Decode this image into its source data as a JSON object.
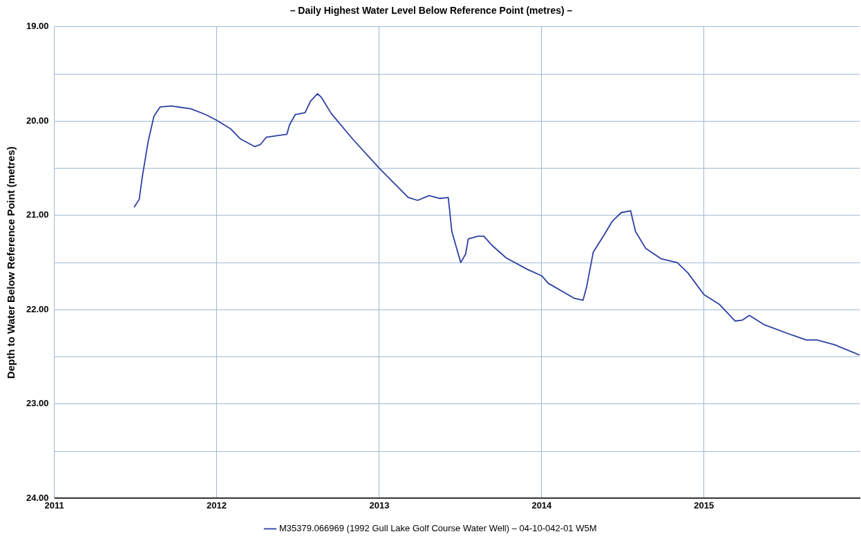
{
  "chart_data": {
    "type": "line",
    "title": "– Daily Highest Water Level Below Reference Point (metres) –",
    "ylabel": "Depth to Water Below Reference Point (metres)",
    "series": [
      {
        "name": "M35379.066969 (1992 Gull Lake Golf Course Water Well) – 04-10-042-01 W5M",
        "color": "#2b3fa3",
        "x": [
          "2011-06-30",
          "2011-07-11",
          "2011-07-18",
          "2011-07-31",
          "2011-08-13",
          "2011-08-27",
          "2011-09-22",
          "2011-11-05",
          "2011-12-07",
          "2012-01-01",
          "2012-02-01",
          "2012-02-24",
          "2012-03-27",
          "2012-04-08",
          "2012-04-22",
          "2012-06-07",
          "2012-06-13",
          "2012-06-26",
          "2012-07-18",
          "2012-07-30",
          "2012-08-15",
          "2012-08-24",
          "2012-09-15",
          "2012-11-02",
          "2013-01-01",
          "2013-03-07",
          "2013-03-28",
          "2013-04-23",
          "2013-05-17",
          "2013-06-05",
          "2013-06-13",
          "2013-07-03",
          "2013-07-14",
          "2013-07-20",
          "2013-08-11",
          "2013-08-24",
          "2013-09-12",
          "2013-10-13",
          "2013-11-29",
          "2014-01-01",
          "2014-01-16",
          "2014-03-16",
          "2014-04-04",
          "2014-04-12",
          "2014-04-27",
          "2014-05-21",
          "2014-06-09",
          "2014-06-29",
          "2014-07-20",
          "2014-07-31",
          "2014-08-23",
          "2014-09-27",
          "2014-11-02",
          "2014-11-26",
          "2015-01-01",
          "2015-02-04",
          "2015-03-12",
          "2015-03-28",
          "2015-04-13",
          "2015-05-17",
          "2015-07-19",
          "2015-08-19",
          "2015-09-12",
          "2015-10-21",
          "2015-12-17"
        ],
        "values": [
          20.91,
          20.83,
          20.59,
          20.22,
          19.95,
          19.85,
          19.84,
          19.87,
          19.93,
          19.99,
          20.08,
          20.19,
          20.27,
          20.25,
          20.17,
          20.14,
          20.04,
          19.93,
          19.91,
          19.79,
          19.71,
          19.75,
          19.92,
          20.19,
          20.5,
          20.81,
          20.84,
          20.79,
          20.82,
          20.81,
          21.17,
          21.5,
          21.41,
          21.25,
          21.22,
          21.22,
          21.32,
          21.45,
          21.57,
          21.64,
          21.72,
          21.88,
          21.9,
          21.76,
          21.39,
          21.21,
          21.06,
          20.97,
          20.95,
          21.17,
          21.35,
          21.46,
          21.5,
          21.61,
          21.84,
          21.94,
          22.12,
          22.11,
          22.06,
          22.16,
          22.27,
          22.32,
          22.32,
          22.37,
          22.48
        ]
      }
    ],
    "xlim": [
      "2011-01-01",
      "2015-12-17"
    ],
    "xticks": [
      "2011",
      "2012",
      "2013",
      "2014",
      "2015"
    ],
    "ylim": [
      24,
      19
    ],
    "yticks": [
      {
        "value": 19,
        "label": "19.00"
      },
      {
        "value": 19.5,
        "label": null
      },
      {
        "value": 20,
        "label": "20.00"
      },
      {
        "value": 20.5,
        "label": null
      },
      {
        "value": 21,
        "label": "21.00"
      },
      {
        "value": 21.5,
        "label": null
      },
      {
        "value": 22,
        "label": "22.00"
      },
      {
        "value": 22.5,
        "label": null
      },
      {
        "value": 23,
        "label": "23.00"
      },
      {
        "value": 23.5,
        "label": null
      },
      {
        "value": 24,
        "label": "24.00"
      }
    ],
    "grid": true,
    "legend": "bottom",
    "marker": "none",
    "line_style": "solid"
  }
}
